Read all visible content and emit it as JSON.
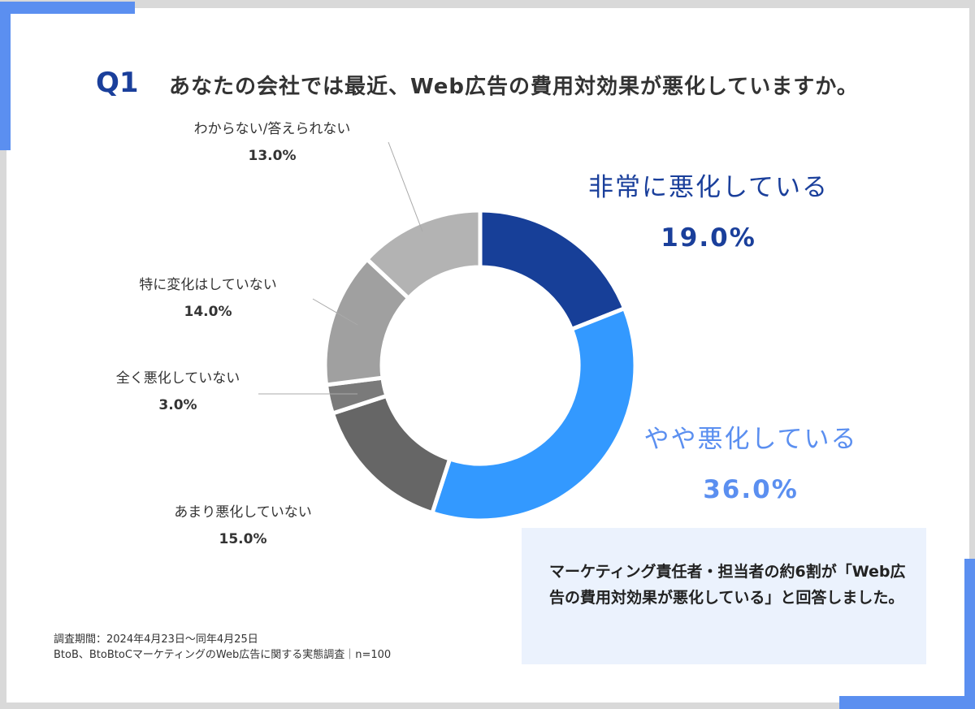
{
  "question_no": "Q1",
  "title": "あなたの会社では最近、Web広告の費用対効果が悪化していますか。",
  "chart_data": {
    "type": "pie",
    "donut": true,
    "start": "top, clockwise",
    "categories": [
      "非常に悪化している",
      "やや悪化している",
      "あまり悪化していない",
      "全く悪化していない",
      "特に変化はしていない",
      "わからない/答えられない"
    ],
    "values": [
      19.0,
      36.0,
      15.0,
      3.0,
      14.0,
      13.0
    ],
    "labels": [
      "19.0%",
      "36.0%",
      "15.0%",
      "3.0%",
      "14.0%",
      "13.0%"
    ],
    "colors": [
      "#173f98",
      "#3399ff",
      "#666666",
      "#7a7a7a",
      "#a0a0a0",
      "#b3b3b3"
    ],
    "label_colors": [
      "#1a3f9b",
      "#5b8ff0",
      "#333333",
      "#333333",
      "#333333",
      "#333333"
    ]
  },
  "note": "マーケティング責任者・担当者の約6割が「Web広告の費用対効果が悪化している」と回答しました。",
  "footer": {
    "period": "調査期間：2024年4月23日～同年4月25日",
    "survey": "BtoB、BtoBtoCマーケティングのWeb広告に関する実態調査｜n=100"
  },
  "accent_color": "#5b8ff0"
}
